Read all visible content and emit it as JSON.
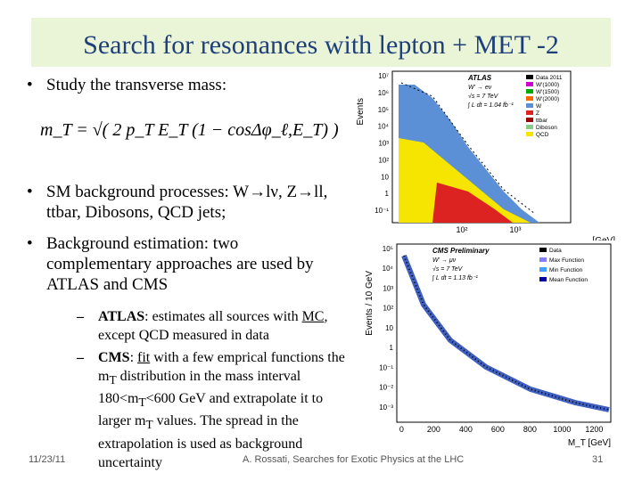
{
  "header": {
    "title": "Search for resonances with lepton + MET -2"
  },
  "bullets": [
    {
      "text": "Study the transverse mass:"
    },
    {
      "text": "SM background processes: W→lν, Z→ll, ttbar, Dibosons, QCD jets;"
    },
    {
      "text": "Background estimation: two complementary approaches are used by ATLAS and CMS"
    }
  ],
  "formula": "m_T = √( 2 p_T E_T (1 − cosΔφ_ℓ,E_T) )",
  "sub_bullets": [
    {
      "segments": [
        "ATLAS",
        ": estimates all sources with ",
        "MC",
        ", except QCD measured in data"
      ]
    },
    {
      "segments": [
        "CMS",
        ": ",
        "fit",
        " with a few emprical functions the m",
        "T",
        " distribution in the mass interval 180<m",
        "T",
        "<600 GeV and extrapolate it to larger m",
        "T",
        " values. The spread in the extrapolation is used as background uncertainty"
      ]
    }
  ],
  "atlas_plot": {
    "y_label": "Events",
    "x_label": "[GeV]",
    "experiment": "ATLAS",
    "process": "W' → eν",
    "energy": "√s = 7 TeV",
    "lumi": "∫ L dt = 1.04 fb⁻¹",
    "yticks": [
      "10⁷",
      "10⁶",
      "10⁵",
      "10⁴",
      "10³",
      "10²",
      "10",
      "1",
      "10⁻¹"
    ],
    "xticks": [
      "10²",
      "10³"
    ],
    "legend": [
      "Data 2011",
      "W'(1000)",
      "W'(1500)",
      "W'(2000)",
      "W",
      "Z",
      "ttbar",
      "Diboson",
      "QCD"
    ]
  },
  "cms_plot": {
    "y_label": "Events / 10 GeV",
    "x_label": "M_T [GeV]",
    "experiment": "CMS Preliminary",
    "process": "W' → μν",
    "energy": "√s = 7 TeV",
    "lumi": "∫ L dt = 1.13 fb⁻¹",
    "yticks": [
      "10⁵",
      "10⁴",
      "10³",
      "10²",
      "10",
      "1",
      "10⁻¹",
      "10⁻²",
      "10⁻³"
    ],
    "xticks": [
      "0",
      "200",
      "400",
      "600",
      "800",
      "1000",
      "1200"
    ],
    "legend": [
      "Data",
      "Max Function",
      "Min Function",
      "Mean Function"
    ]
  },
  "footer": {
    "date": "11/23/11",
    "author": "A. Rossati, Searches for Exotic Physics at the LHC",
    "page": "31"
  }
}
